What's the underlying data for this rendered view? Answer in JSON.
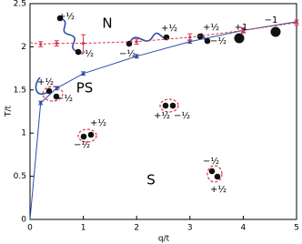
{
  "chart_data": {
    "type": "line",
    "x_label": "q/t",
    "y_label": "T/t",
    "xlim": [
      0,
      5
    ],
    "ylim": [
      0,
      2.5
    ],
    "xticks": [
      0,
      1,
      2,
      3,
      4,
      5
    ],
    "yticks": [
      0,
      0.5,
      1,
      1.5,
      2,
      2.5
    ],
    "x": [
      0,
      0.2,
      0.5,
      1,
      2,
      3,
      4,
      5
    ],
    "series": [
      {
        "color": "#2b4ea8",
        "dashed": false,
        "values": [
          0,
          1.35,
          1.52,
          1.69,
          1.89,
          2.06,
          2.19,
          2.29
        ],
        "errors": [
          0,
          0.02,
          0.02,
          0.02,
          0.02,
          0.02,
          0.02,
          0.02
        ]
      },
      {
        "color": "#d9344a",
        "dashed": true,
        "values": [
          2.05,
          2.03,
          2.04,
          2.04,
          2.06,
          2.11,
          2.19,
          2.28
        ],
        "errors": [
          0,
          0.03,
          0.03,
          0.1,
          0.03,
          0.04,
          0.03,
          0.03
        ]
      }
    ],
    "annotations": [
      "N",
      "PS",
      "S",
      "+½",
      "−½",
      "+½",
      "−½",
      "+½",
      "−½",
      "+1",
      "−1",
      "+½",
      "−½",
      "+½",
      "−½",
      "+½",
      "−½",
      "−½",
      "+½"
    ]
  }
}
